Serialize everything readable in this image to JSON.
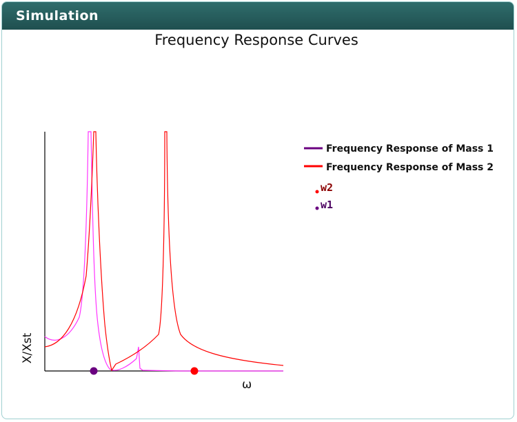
{
  "window": {
    "title": "Simulation"
  },
  "chart_data": {
    "type": "line",
    "title": "Frequency Response Curves",
    "xlabel": "ω",
    "ylabel": "X/Xst",
    "legend_position": "right",
    "series": [
      {
        "name": "Frequency Response of Mass 1",
        "color": "#6a0080"
      },
      {
        "name": "Frequency Response of Mass 2",
        "color": "#ff0000"
      }
    ],
    "markers": [
      {
        "label": "w2",
        "color": "#ff0000",
        "text_color": "#8b0000"
      },
      {
        "label": "w1",
        "color": "#6a0080",
        "text_color": "#4b0060"
      }
    ],
    "curve_colors": {
      "mass1_plotted": "#ff33ff",
      "mass2_plotted": "#ff0000"
    }
  }
}
